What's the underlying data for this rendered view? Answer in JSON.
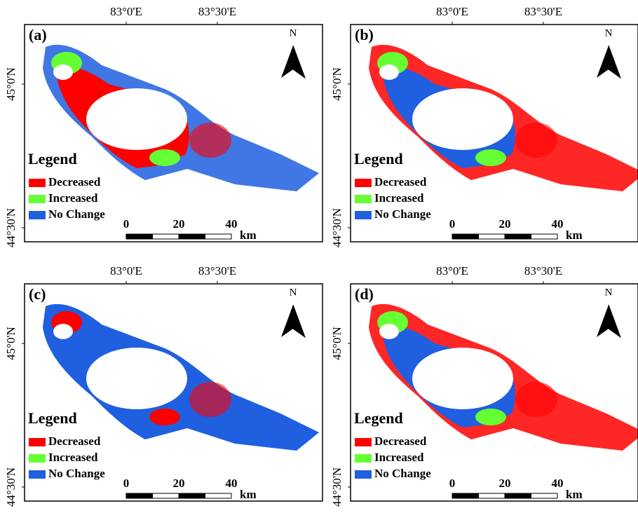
{
  "panels": [
    {
      "label": "(a)",
      "x_labels": [
        "83°0'E",
        "83°30'E"
      ],
      "y_labels": [
        "45°0'N",
        "44°30'N"
      ],
      "north": "N",
      "legend": {
        "title": "Legend",
        "items": [
          {
            "name": "Decreased",
            "color": "#ff0000"
          },
          {
            "name": "Increased",
            "color": "#66ff33"
          },
          {
            "name": "No Change",
            "color": "#1f5fe0"
          }
        ]
      },
      "scale": {
        "ticks": [
          0,
          20,
          40
        ],
        "unit": "km"
      }
    },
    {
      "label": "(b)",
      "x_labels": [
        "83°0'E",
        "83°30'E"
      ],
      "y_labels": [
        "45°0'N",
        "44°30'N"
      ],
      "north": "N",
      "legend": {
        "title": "Legend",
        "items": [
          {
            "name": "Decreased",
            "color": "#ff0000"
          },
          {
            "name": "Increased",
            "color": "#66ff33"
          },
          {
            "name": "No Change",
            "color": "#1f5fe0"
          }
        ]
      },
      "scale": {
        "ticks": [
          0,
          20,
          40
        ],
        "unit": "km"
      }
    },
    {
      "label": "(c)",
      "x_labels": [
        "83°0'E",
        "83°30'E"
      ],
      "y_labels": [
        "45°0'N",
        "44°30'N"
      ],
      "north": "N",
      "legend": {
        "title": "Legend",
        "items": [
          {
            "name": "Decreased",
            "color": "#ff0000"
          },
          {
            "name": "Increased",
            "color": "#66ff33"
          },
          {
            "name": "No Change",
            "color": "#1f5fe0"
          }
        ]
      },
      "scale": {
        "ticks": [
          0,
          20,
          40
        ],
        "unit": "km"
      }
    },
    {
      "label": "(d)",
      "x_labels": [
        "83°0'E",
        "83°30'E"
      ],
      "y_labels": [
        "45°0'N",
        "44°30'N"
      ],
      "north": "N",
      "legend": {
        "title": "Legend",
        "items": [
          {
            "name": "Decreased",
            "color": "#ff0000"
          },
          {
            "name": "Increased",
            "color": "#66ff33"
          },
          {
            "name": "No Change",
            "color": "#1f5fe0"
          }
        ]
      },
      "scale": {
        "ticks": [
          0,
          20,
          40
        ],
        "unit": "km"
      }
    }
  ]
}
